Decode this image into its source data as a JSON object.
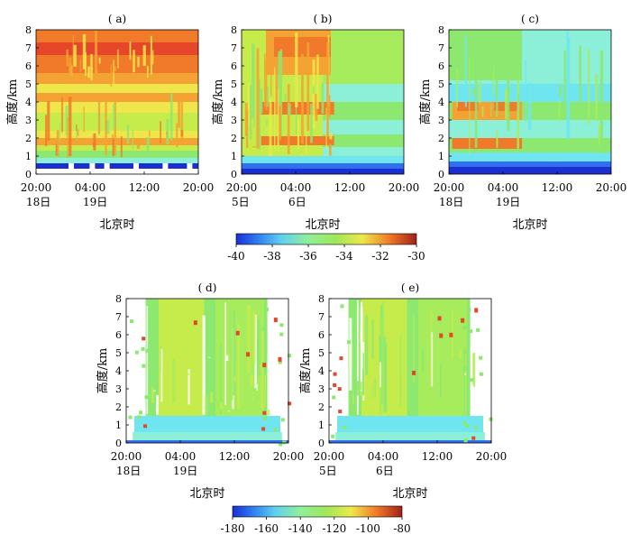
{
  "figure": {
    "panels_top": [
      {
        "label": "( a)",
        "x_ticks": [
          "20:00",
          "04:00",
          "12:00",
          "20:00"
        ],
        "date_labels": [
          "18日",
          "19日"
        ],
        "xlabel": "北京时",
        "ylabel": "高度/km",
        "y_ticks": [
          "0",
          "1",
          "2",
          "3",
          "4",
          "5",
          "6",
          "7",
          "8"
        ]
      },
      {
        "label": "( b)",
        "x_ticks": [
          "20:00",
          "04:00",
          "12:00",
          "20:00"
        ],
        "date_labels": [
          "5日",
          "6日"
        ],
        "xlabel": "北京时",
        "ylabel": "高度/km",
        "y_ticks": [
          "0",
          "1",
          "2",
          "3",
          "4",
          "5",
          "6",
          "7",
          "8"
        ]
      },
      {
        "label": "( c)",
        "x_ticks": [
          "20:00",
          "04:00",
          "12:00",
          "20:00"
        ],
        "date_labels": [
          "18日",
          "19日"
        ],
        "xlabel": "北京时",
        "ylabel": "高度/km",
        "y_ticks": [
          "0",
          "1",
          "2",
          "3",
          "4",
          "5",
          "6",
          "7",
          "8"
        ]
      }
    ],
    "panels_bottom": [
      {
        "label": "( d)",
        "x_ticks": [
          "20:00",
          "04:00",
          "12:00",
          "20:00"
        ],
        "date_labels": [
          "18日",
          "19日"
        ],
        "xlabel": "北京时",
        "ylabel": "高度/km",
        "y_ticks": [
          "0",
          "1",
          "2",
          "3",
          "4",
          "5",
          "6",
          "7",
          "8"
        ]
      },
      {
        "label": "( e)",
        "x_ticks": [
          "20:00",
          "04:00",
          "12:00",
          "20:00"
        ],
        "date_labels": [
          "5日",
          "6日"
        ],
        "xlabel": "北京时",
        "ylabel": "高度/km",
        "y_ticks": [
          "0",
          "1",
          "2",
          "3",
          "4",
          "5",
          "6",
          "7",
          "8"
        ]
      }
    ],
    "colorbar_top": {
      "ticks": [
        "-40",
        "-38",
        "-36",
        "-34",
        "-32",
        "-30"
      ]
    },
    "colorbar_bottom": {
      "ticks": [
        "-180",
        "-160",
        "-140",
        "-120",
        "-100",
        "-80"
      ]
    }
  },
  "chart_data": [
    {
      "type": "heatmap",
      "panel": "a",
      "x_ticks": [
        "20:00",
        "04:00",
        "12:00",
        "20:00"
      ],
      "ylabel": "高度/km",
      "xlabel": "北京时",
      "ylim": [
        0,
        8
      ],
      "color_range": [
        -40,
        -30
      ],
      "description_values": {
        "0-0.5km": -39,
        "0.5-1.5km": -35,
        "1.5-2km": -32,
        "2-4km": -34.5,
        "4-5km": -32.5,
        "5-8km": -31
      }
    },
    {
      "type": "heatmap",
      "panel": "b",
      "x_ticks": [
        "20:00",
        "04:00",
        "12:00",
        "20:00"
      ],
      "ylabel": "高度/km",
      "xlabel": "北京时",
      "ylim": [
        0,
        8
      ],
      "color_range": [
        -40,
        -30
      ],
      "description_values": {
        "0-0.5km": -39,
        "0.5-8km_first_half": -33,
        "0.5-8km_second_half": -35.5
      }
    },
    {
      "type": "heatmap",
      "panel": "c",
      "x_ticks": [
        "20:00",
        "04:00",
        "12:00",
        "20:00"
      ],
      "ylabel": "高度/km",
      "xlabel": "北京时",
      "ylim": [
        0,
        8
      ],
      "color_range": [
        -40,
        -30
      ],
      "description_values": {
        "0-0.5km": -39,
        "1.5-2km_first_half": -32,
        "3-4km_first_half": -32.5,
        "other": -35.5
      }
    },
    {
      "type": "heatmap",
      "panel": "d",
      "x_ticks": [
        "20:00",
        "04:00",
        "12:00",
        "20:00"
      ],
      "ylabel": "高度/km",
      "xlabel": "北京时",
      "ylim": [
        0,
        8
      ],
      "color_range": [
        -180,
        -80
      ],
      "description_values": {
        "0-0.2km": -175,
        "0.2-1.5km": -155,
        "1.5-8km": -135
      }
    },
    {
      "type": "heatmap",
      "panel": "e",
      "x_ticks": [
        "20:00",
        "04:00",
        "12:00",
        "20:00"
      ],
      "ylabel": "高度/km",
      "xlabel": "北京时",
      "ylim": [
        0,
        8
      ],
      "color_range": [
        -180,
        -80
      ],
      "description_values": {
        "0-0.2km": -175,
        "0.2-1.5km": -155,
        "1.5-8km": -135
      }
    }
  ]
}
